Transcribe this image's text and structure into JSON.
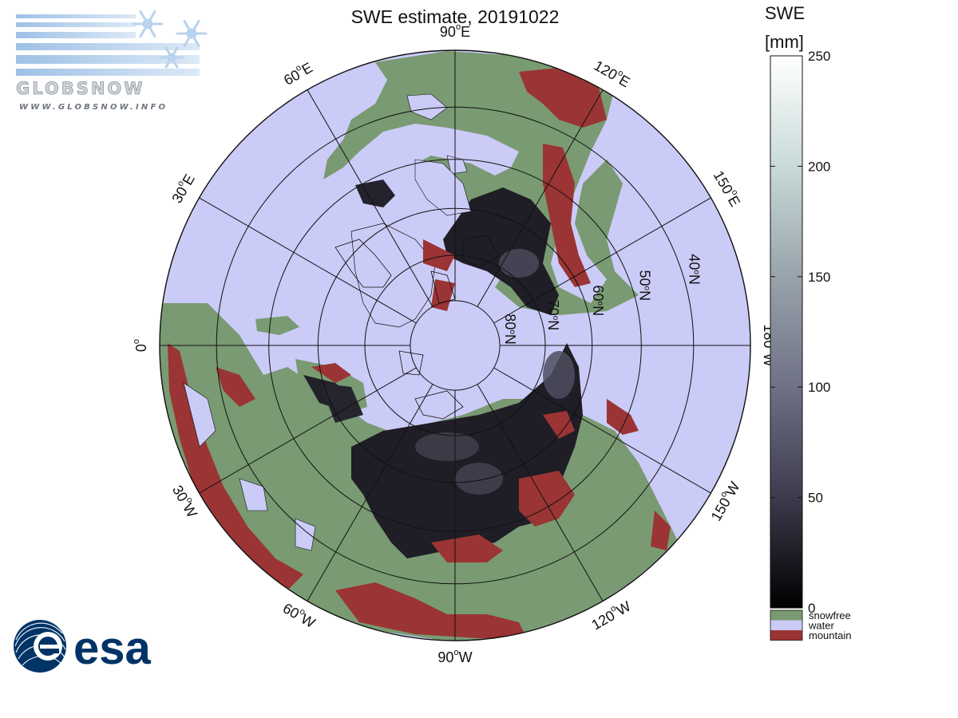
{
  "title": "SWE estimate, 20191022",
  "logos": {
    "globsnow_wordmark": "GLOBSNOW",
    "globsnow_url": "WWW.GLOBSNOW.INFO",
    "esa_wordmark": "esa",
    "snowflake_icon": "snowflake-icon",
    "esa_globe_icon": "esa-globe-icon"
  },
  "map": {
    "projection": "north polar stereographic",
    "meridian_labels": [
      {
        "lon": "90°W",
        "text": "90",
        "sup": "o",
        "dir": "W"
      },
      {
        "lon": "60°W",
        "text": "60",
        "sup": "o",
        "dir": "W"
      },
      {
        "lon": "120°W",
        "text": "120",
        "sup": "o",
        "dir": "W"
      },
      {
        "lon": "30°W",
        "text": "30",
        "sup": "o",
        "dir": "W"
      },
      {
        "lon": "150°W",
        "text": "150",
        "sup": "o",
        "dir": "W"
      },
      {
        "lon": "0°",
        "text": "0",
        "sup": "o",
        "dir": ""
      },
      {
        "lon": "180°W",
        "text": "180",
        "sup": "o",
        "dir": "W"
      },
      {
        "lon": "30°E",
        "text": "30",
        "sup": "o",
        "dir": "E"
      },
      {
        "lon": "150°E",
        "text": "150",
        "sup": "o",
        "dir": "E"
      },
      {
        "lon": "60°E",
        "text": "60",
        "sup": "o",
        "dir": "E"
      },
      {
        "lon": "120°E",
        "text": "120",
        "sup": "o",
        "dir": "E"
      },
      {
        "lon": "90°E",
        "text": "90",
        "sup": "o",
        "dir": "E"
      }
    ],
    "latitude_labels": [
      {
        "lat": 80,
        "text": "80",
        "sup": "o",
        "dir": "N"
      },
      {
        "lat": 70,
        "text": "70",
        "sup": "o",
        "dir": "N"
      },
      {
        "lat": 60,
        "text": "60",
        "sup": "o",
        "dir": "N"
      },
      {
        "lat": 50,
        "text": "50",
        "sup": "o",
        "dir": "N"
      },
      {
        "lat": 40,
        "text": "40",
        "sup": "o",
        "dir": "N"
      }
    ],
    "colors": {
      "water": "#cbcbf7",
      "snowfree": "#799a72",
      "mountain": "#9b3434",
      "snow_dark": "#1f1d25",
      "grid": "#111111"
    }
  },
  "colorbar": {
    "title_line1": "SWE",
    "title_line2": "[mm]",
    "min": 0,
    "max": 250,
    "ticks": [
      "250",
      "200",
      "150",
      "100",
      "50",
      "0"
    ],
    "tick_values": [
      250,
      200,
      150,
      100,
      50,
      0
    ],
    "gradient": [
      "#000000",
      "#3d3b4d",
      "#6f7186",
      "#98a3ab",
      "#c8dad8",
      "#ffffff"
    ],
    "legend": [
      {
        "label": "snowfree",
        "color": "#799a72"
      },
      {
        "label": "water",
        "color": "#cbcbf7"
      },
      {
        "label": "mountain",
        "color": "#9b3434"
      }
    ]
  }
}
